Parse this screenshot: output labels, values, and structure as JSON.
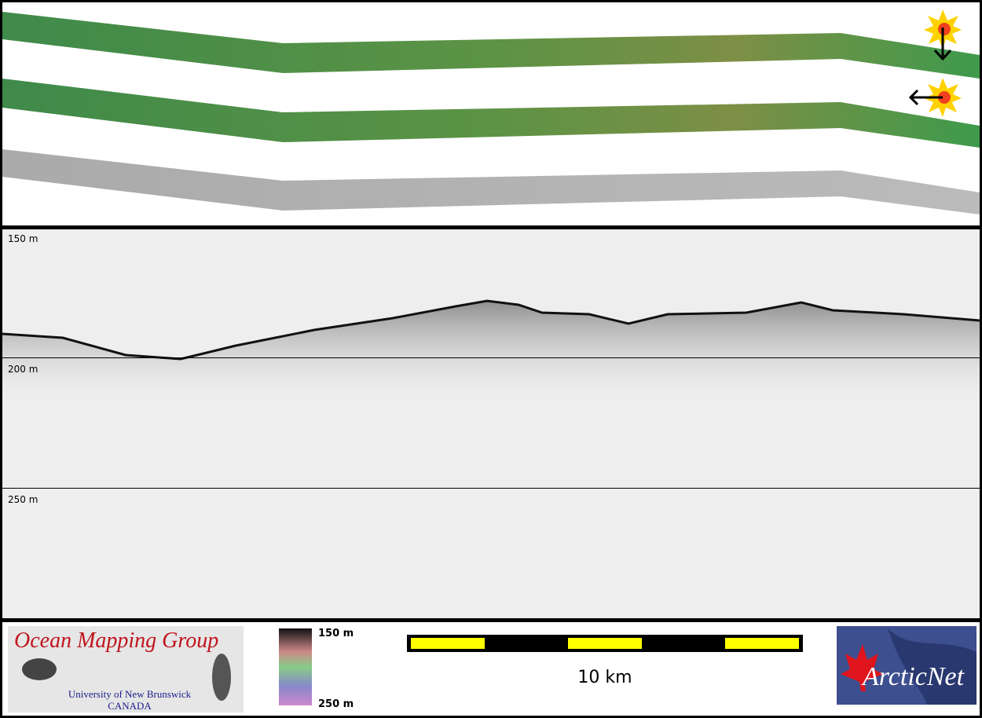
{
  "profile": {
    "depth_labels": [
      "150 m",
      "200 m",
      "250 m"
    ]
  },
  "logo": {
    "title": "Ocean Mapping Group",
    "line1": "University of New Brunswick",
    "line2": "CANADA"
  },
  "colorbar": {
    "top": "150 m",
    "bottom": "250 m"
  },
  "scale_bar": {
    "label": "10 km"
  },
  "partner": {
    "name": "ArcticNet"
  }
}
